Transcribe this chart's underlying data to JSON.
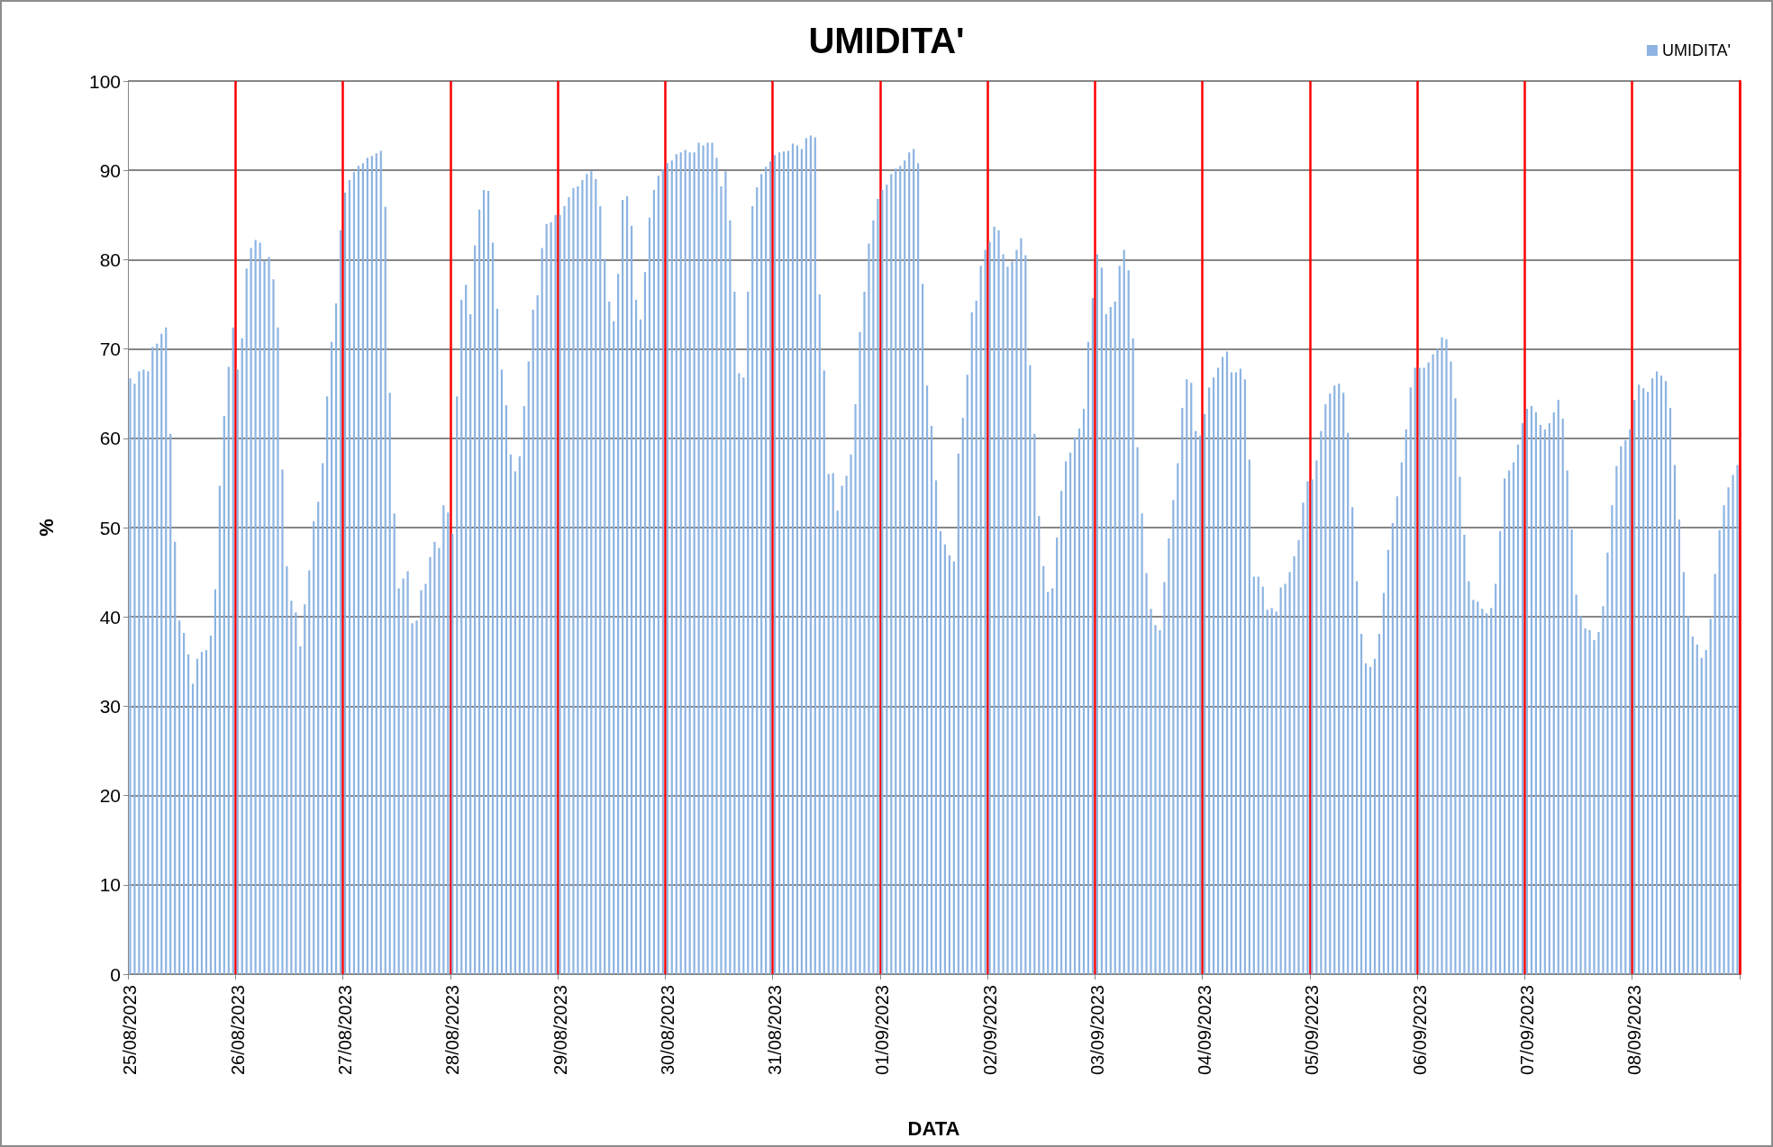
{
  "chart_data": {
    "type": "bar",
    "title": "UMIDITA'",
    "xlabel": "DATA",
    "ylabel": "%",
    "categories": [
      "25/08/2023",
      null,
      null,
      null,
      null,
      null,
      null,
      null,
      null,
      null,
      null,
      null,
      null,
      null,
      null,
      null,
      null,
      null,
      null,
      null,
      null,
      null,
      null,
      null,
      "26/08/2023",
      null,
      null,
      null,
      null,
      null,
      null,
      null,
      null,
      null,
      null,
      null,
      null,
      null,
      null,
      null,
      null,
      null,
      null,
      null,
      null,
      null,
      null,
      null,
      "27/08/2023",
      null,
      null,
      null,
      null,
      null,
      null,
      null,
      null,
      null,
      null,
      null,
      null,
      null,
      null,
      null,
      null,
      null,
      null,
      null,
      null,
      null,
      null,
      null,
      "28/08/2023",
      null,
      null,
      null,
      null,
      null,
      null,
      null,
      null,
      null,
      null,
      null,
      null,
      null,
      null,
      null,
      null,
      null,
      null,
      null,
      null,
      null,
      null,
      null,
      "29/08/2023",
      null,
      null,
      null,
      null,
      null,
      null,
      null,
      null,
      null,
      null,
      null,
      null,
      null,
      null,
      null,
      null,
      null,
      null,
      null,
      null,
      null,
      null,
      null,
      "30/08/2023",
      null,
      null,
      null,
      null,
      null,
      null,
      null,
      null,
      null,
      null,
      null,
      null,
      null,
      null,
      null,
      null,
      null,
      null,
      null,
      null,
      null,
      null,
      null,
      "31/08/2023",
      null,
      null,
      null,
      null,
      null,
      null,
      null,
      null,
      null,
      null,
      null,
      null,
      null,
      null,
      null,
      null,
      null,
      null,
      null,
      null,
      null,
      null,
      null,
      "01/09/2023",
      null,
      null,
      null,
      null,
      null,
      null,
      null,
      null,
      null,
      null,
      null,
      null,
      null,
      null,
      null,
      null,
      null,
      null,
      null,
      null,
      null,
      null,
      null,
      "02/09/2023",
      null,
      null,
      null,
      null,
      null,
      null,
      null,
      null,
      null,
      null,
      null,
      null,
      null,
      null,
      null,
      null,
      null,
      null,
      null,
      null,
      null,
      null,
      null,
      "03/09/2023",
      null,
      null,
      null,
      null,
      null,
      null,
      null,
      null,
      null,
      null,
      null,
      null,
      null,
      null,
      null,
      null,
      null,
      null,
      null,
      null,
      null,
      null,
      null,
      "04/09/2023",
      null,
      null,
      null,
      null,
      null,
      null,
      null,
      null,
      null,
      null,
      null,
      null,
      null,
      null,
      null,
      null,
      null,
      null,
      null,
      null,
      null,
      null,
      null,
      "05/09/2023",
      null,
      null,
      null,
      null,
      null,
      null,
      null,
      null,
      null,
      null,
      null,
      null,
      null,
      null,
      null,
      null,
      null,
      null,
      null,
      null,
      null,
      null,
      null,
      "06/09/2023",
      null,
      null,
      null,
      null,
      null,
      null,
      null,
      null,
      null,
      null,
      null,
      null,
      null,
      null,
      null,
      null,
      null,
      null,
      null,
      null,
      null,
      null,
      null,
      "07/09/2023",
      null,
      null,
      null,
      null,
      null,
      null,
      null,
      null,
      null,
      null,
      null,
      null,
      null,
      null,
      null,
      null,
      null,
      null,
      null,
      null,
      null,
      null,
      null,
      "08/09/2023",
      null,
      null,
      null,
      null,
      null,
      null,
      null,
      null,
      null,
      null,
      null,
      null,
      null,
      null,
      null,
      null,
      null,
      null,
      null,
      null,
      null,
      null,
      null
    ],
    "series": [
      {
        "name": "UMIDITA'",
        "color": "#8db4e2",
        "values": [
          66.7,
          66.1,
          67.5,
          67.7,
          67.5,
          70.2,
          70.6,
          71.7,
          72.4,
          60.5,
          48.4,
          39.6,
          38.2,
          35.8,
          32.5,
          35.3,
          36.1,
          36.3,
          37.9,
          43.1,
          54.7,
          62.5,
          68.0,
          72.4,
          67.7,
          71.2,
          79.0,
          81.3,
          82.2,
          81.9,
          79.9,
          80.3,
          77.8,
          72.4,
          56.5,
          45.7,
          41.8,
          40.5,
          36.7,
          41.4,
          45.2,
          50.7,
          52.9,
          57.2,
          64.7,
          70.8,
          75.1,
          83.3,
          87.5,
          88.9,
          89.8,
          90.5,
          90.8,
          91.4,
          91.6,
          91.9,
          92.2,
          85.9,
          65.1,
          51.6,
          43.2,
          44.3,
          45.1,
          39.3,
          39.6,
          43.0,
          43.7,
          46.7,
          48.4,
          47.7,
          52.5,
          51.7,
          49.3,
          64.7,
          75.5,
          77.2,
          73.9,
          81.6,
          85.6,
          87.8,
          87.7,
          81.9,
          74.5,
          67.7,
          63.7,
          58.2,
          56.3,
          58.0,
          63.6,
          68.6,
          74.4,
          76.0,
          81.3,
          84.0,
          84.2,
          85.0,
          85.0,
          86.0,
          87.0,
          88.0,
          88.2,
          88.9,
          89.6,
          89.9,
          89.0,
          86.0,
          80.1,
          75.3,
          73.1,
          78.4,
          86.7,
          87.1,
          83.8,
          75.5,
          73.3,
          78.6,
          84.7,
          87.8,
          89.4,
          90.1,
          90.8,
          91.1,
          91.8,
          92.0,
          92.3,
          92.0,
          92.0,
          93.1,
          92.8,
          93.1,
          93.1,
          91.4,
          88.2,
          89.9,
          84.4,
          76.4,
          67.3,
          66.8,
          76.4,
          86.0,
          88.1,
          89.6,
          90.4,
          91.0,
          91.7,
          92.0,
          92.1,
          92.2,
          93.0,
          92.8,
          92.4,
          93.6,
          93.9,
          93.7,
          76.1,
          67.6,
          56.0,
          56.1,
          51.9,
          54.7,
          55.8,
          58.2,
          63.8,
          71.9,
          76.4,
          81.8,
          84.4,
          86.8,
          87.8,
          88.4,
          89.6,
          90.2,
          90.5,
          91.1,
          92.0,
          92.4,
          90.8,
          77.3,
          65.9,
          61.4,
          55.3,
          49.6,
          48.1,
          46.9,
          46.2,
          58.3,
          62.3,
          67.1,
          74.1,
          75.4,
          79.3,
          81.1,
          82.0,
          83.7,
          83.3,
          80.6,
          79.2,
          79.8,
          81.1,
          82.4,
          80.5,
          68.2,
          60.5,
          51.3,
          45.7,
          42.8,
          43.2,
          48.9,
          54.1,
          57.4,
          58.4,
          60.1,
          61.1,
          63.3,
          70.8,
          75.7,
          80.6,
          79.1,
          73.9,
          74.7,
          75.3,
          79.3,
          81.1,
          78.8,
          71.2,
          59.0,
          51.6,
          44.9,
          40.9,
          39.1,
          38.5,
          43.9,
          48.8,
          53.1,
          57.2,
          63.4,
          66.6,
          66.2,
          60.8,
          60.3,
          62.7,
          65.7,
          66.8,
          67.9,
          69.1,
          69.7,
          67.4,
          67.4,
          67.8,
          66.6,
          57.6,
          44.5,
          44.5,
          43.4,
          40.8,
          41.0,
          40.6,
          43.3,
          43.7,
          45.0,
          46.8,
          48.6,
          52.8,
          55.2,
          55.4,
          57.5,
          60.8,
          63.8,
          65.0,
          65.9,
          66.1,
          65.1,
          60.6,
          52.3,
          44.0,
          38.1,
          34.8,
          34.4,
          35.3,
          38.1,
          42.7,
          47.5,
          50.5,
          53.5,
          57.3,
          61.0,
          65.7,
          67.9,
          67.9,
          67.9,
          68.5,
          69.4,
          70.0,
          71.3,
          71.1,
          68.6,
          64.5,
          55.7,
          49.2,
          44.0,
          41.9,
          41.7,
          40.9,
          40.4,
          41.0,
          43.7,
          49.6,
          55.5,
          56.4,
          57.3,
          59.3,
          61.7,
          63.3,
          63.6,
          62.9,
          61.5,
          61.0,
          61.7,
          62.9,
          64.3,
          62.2,
          56.4,
          49.8,
          42.5,
          40.1,
          38.7,
          38.5,
          37.4,
          38.3,
          41.2,
          47.2,
          52.5,
          56.9,
          59.1,
          59.8,
          61.0,
          64.3,
          66.0,
          65.6,
          65.2,
          66.7,
          67.5,
          67.0,
          66.4,
          63.4,
          57.0,
          50.9,
          45.0,
          40.1,
          37.8,
          36.9,
          35.4,
          36.3,
          39.8,
          44.8,
          49.7,
          52.5,
          54.5,
          55.9,
          57.0
        ]
      }
    ],
    "ylim": [
      0,
      100
    ],
    "yticks": [
      0,
      10,
      20,
      30,
      40,
      50,
      60,
      70,
      80,
      90,
      100
    ],
    "grid": true,
    "legend": "top right"
  }
}
